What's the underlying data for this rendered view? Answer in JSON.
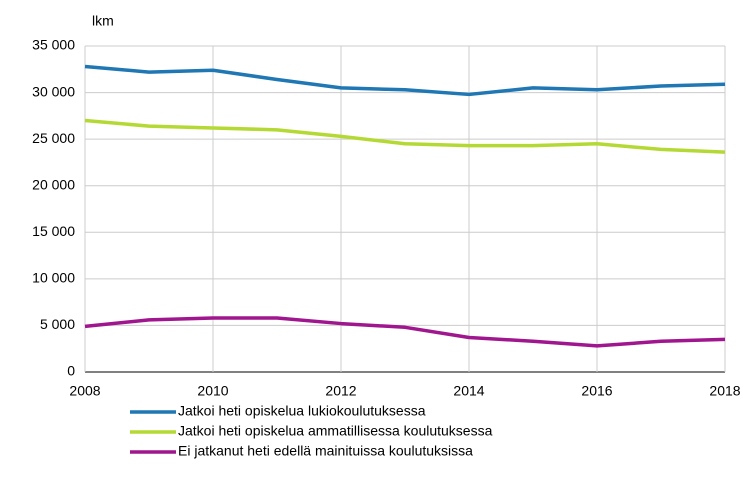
{
  "chart_data": {
    "type": "line",
    "y_axis_label": "lkm",
    "x": [
      2008,
      2009,
      2010,
      2011,
      2012,
      2013,
      2014,
      2015,
      2016,
      2017,
      2018
    ],
    "series": [
      {
        "name": "Jatkoi heti opiskelua lukiokoulutuksessa",
        "color": "#1f77b4",
        "values": [
          32800,
          32200,
          32400,
          31400,
          30500,
          30300,
          29800,
          30500,
          30300,
          30700,
          30900
        ]
      },
      {
        "name": "Jatkoi heti opiskelua ammatillisessa koulutuksessa",
        "color": "#b5d934",
        "values": [
          27000,
          26400,
          26200,
          26000,
          25300,
          24500,
          24300,
          24300,
          24500,
          23900,
          23600
        ]
      },
      {
        "name": "Ei jatkanut heti edellä mainituissa koulutuksissa",
        "color": "#a0168e",
        "values": [
          4900,
          5600,
          5800,
          5800,
          5200,
          4800,
          3700,
          3300,
          2800,
          3300,
          3500
        ]
      }
    ],
    "xlim": [
      2008,
      2018
    ],
    "xticks": [
      2008,
      2010,
      2012,
      2014,
      2016,
      2018
    ],
    "ylim": [
      0,
      35000
    ],
    "yticks": [
      0,
      {
        "value": 5000,
        "label": "5 000"
      },
      {
        "value": 10000,
        "label": "10 000"
      },
      {
        "value": 15000,
        "label": "15 000"
      },
      {
        "value": 20000,
        "label": "20 000"
      },
      {
        "value": 25000,
        "label": "25 000"
      },
      {
        "value": 30000,
        "label": "30 000"
      },
      {
        "value": 35000,
        "label": "35 000"
      }
    ],
    "grid": true
  }
}
